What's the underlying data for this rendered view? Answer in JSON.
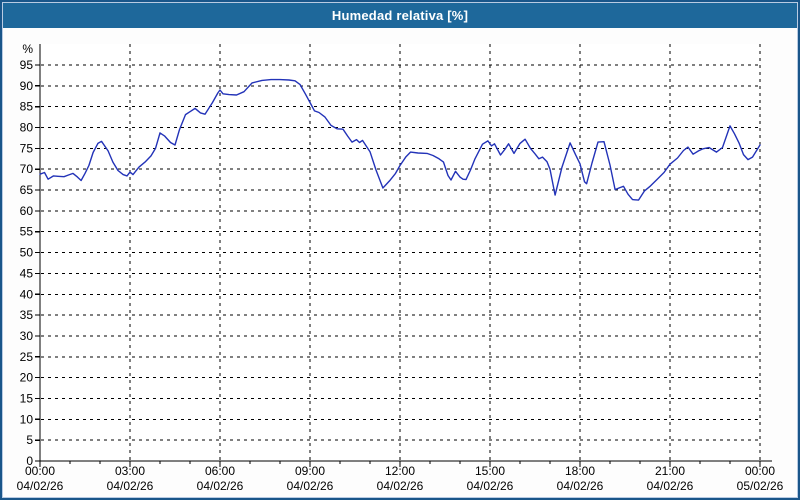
{
  "window": {
    "title": "Humedad relativa [%]"
  },
  "colors": {
    "titlebar_bg": "#1e689b",
    "titlebar_text": "#ffffff",
    "border": "#1a568a",
    "inner_border": "#b9cbe3",
    "panel_bg": "#fdfdfd",
    "plot_bg": "#ffffff",
    "axis": "#000000",
    "grid": "#000000",
    "tick_label": "#000000",
    "line": "#2333b8"
  },
  "chart_data": {
    "type": "line",
    "title": "Humedad relativa [%]",
    "xlabel": "",
    "ylabel": "%",
    "ylim": [
      0,
      97
    ],
    "x_hours_span": 24,
    "grid": "dashed",
    "legend_position": "none",
    "y_tick_step": 5,
    "y_tick_min": 0,
    "y_tick_max": 95,
    "x_ticks": [
      {
        "time": "00:00",
        "date": "04/02/26"
      },
      {
        "time": "03:00",
        "date": "04/02/26"
      },
      {
        "time": "06:00",
        "date": "04/02/26"
      },
      {
        "time": "09:00",
        "date": "04/02/26"
      },
      {
        "time": "12:00",
        "date": "04/02/26"
      },
      {
        "time": "15:00",
        "date": "04/02/26"
      },
      {
        "time": "18:00",
        "date": "04/02/26"
      },
      {
        "time": "21:00",
        "date": "04/02/26"
      },
      {
        "time": "00:00",
        "date": "05/02/26"
      }
    ],
    "series": [
      {
        "name": "Humedad relativa [%]",
        "color": "#2333b8",
        "x": [
          0,
          0.15,
          0.27,
          0.45,
          0.6,
          0.8,
          0.95,
          1.1,
          1.25,
          1.37,
          1.5,
          1.63,
          1.77,
          1.93,
          2.05,
          2.27,
          2.43,
          2.6,
          2.77,
          2.9,
          3.0,
          3.1,
          3.3,
          3.5,
          3.7,
          3.85,
          4.0,
          4.15,
          4.35,
          4.5,
          4.65,
          4.85,
          5.0,
          5.17,
          5.35,
          5.5,
          5.75,
          5.93,
          6.0,
          6.1,
          6.3,
          6.55,
          6.8,
          7.07,
          7.4,
          7.7,
          8.0,
          8.3,
          8.5,
          8.67,
          8.85,
          9.0,
          9.15,
          9.3,
          9.5,
          9.7,
          9.9,
          10.1,
          10.25,
          10.4,
          10.55,
          10.65,
          10.75,
          11.0,
          11.2,
          11.43,
          11.65,
          11.85,
          12.0,
          12.2,
          12.35,
          12.6,
          12.9,
          13.1,
          13.3,
          13.45,
          13.6,
          13.7,
          13.85,
          14.0,
          14.1,
          14.2,
          14.35,
          14.5,
          14.75,
          14.93,
          15.05,
          15.15,
          15.35,
          15.5,
          15.62,
          15.8,
          16.0,
          16.17,
          16.35,
          16.5,
          16.63,
          16.75,
          16.9,
          17.0,
          17.17,
          17.4,
          17.67,
          17.85,
          18.0,
          18.15,
          18.22,
          18.4,
          18.6,
          18.8,
          19.0,
          19.17,
          19.33,
          19.45,
          19.6,
          19.75,
          19.95,
          20.15,
          20.35,
          20.55,
          20.8,
          21.0,
          21.25,
          21.45,
          21.6,
          21.77,
          21.95,
          22.1,
          22.3,
          22.55,
          22.75,
          23.0,
          23.15,
          23.3,
          23.45,
          23.6,
          23.75,
          24.0
        ],
        "y": [
          68.8,
          69.2,
          67.6,
          68.4,
          68.3,
          68.2,
          68.6,
          69.0,
          68.1,
          67.3,
          69.0,
          70.9,
          74.0,
          76.2,
          76.7,
          74.4,
          71.7,
          69.7,
          68.7,
          68.4,
          69.3,
          68.7,
          70.5,
          71.7,
          73.2,
          75.0,
          78.7,
          78.0,
          76.4,
          75.8,
          79.5,
          83.1,
          83.8,
          84.6,
          83.5,
          83.2,
          86.0,
          88.3,
          89.0,
          88.1,
          87.9,
          87.8,
          88.6,
          90.7,
          91.3,
          91.5,
          91.5,
          91.4,
          91.2,
          90.3,
          88.0,
          86.0,
          84.0,
          83.6,
          82.5,
          80.5,
          79.7,
          79.6,
          78.0,
          76.5,
          77.1,
          76.4,
          76.9,
          74.2,
          69.8,
          65.5,
          67.2,
          69.0,
          70.9,
          73.0,
          74.1,
          73.9,
          73.8,
          73.3,
          72.5,
          71.7,
          68.5,
          67.4,
          69.5,
          68.1,
          67.6,
          67.5,
          69.8,
          72.5,
          76.0,
          76.8,
          75.6,
          76.1,
          73.4,
          74.8,
          76.1,
          73.8,
          76.2,
          77.2,
          75.0,
          73.7,
          72.5,
          72.9,
          71.8,
          70.0,
          63.8,
          70.5,
          76.3,
          73.5,
          71.3,
          67.0,
          66.5,
          71.5,
          76.5,
          76.6,
          71.0,
          65.1,
          65.6,
          65.9,
          64.0,
          62.7,
          62.6,
          64.8,
          66.0,
          67.4,
          69.2,
          71.2,
          72.7,
          74.5,
          75.3,
          73.6,
          74.4,
          74.9,
          75.2,
          74.1,
          75.2,
          80.4,
          78.5,
          76.3,
          73.5,
          72.3,
          72.9,
          75.8
        ]
      }
    ]
  }
}
